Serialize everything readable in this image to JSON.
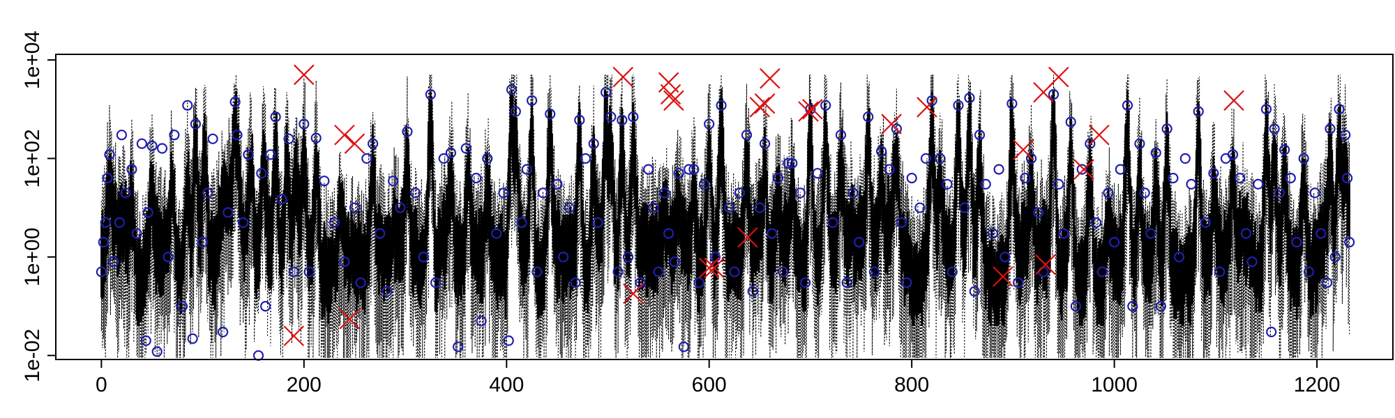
{
  "chart_data": {
    "type": "line",
    "title": "",
    "xlabel": "",
    "ylabel": "",
    "x_scale": "linear",
    "y_scale": "log10",
    "xlim": [
      -45,
      1275
    ],
    "ylim": [
      0.0083,
      13000
    ],
    "x_ticks": [
      0,
      200,
      400,
      600,
      800,
      1000,
      1200
    ],
    "x_tick_labels": [
      "0",
      "200",
      "400",
      "600",
      "800",
      "1000",
      "1200"
    ],
    "y_ticks": [
      0.01,
      1,
      100,
      10000
    ],
    "y_tick_labels": [
      "1e-02",
      "1e+00",
      "1e+02",
      "1e+04"
    ],
    "grid": false,
    "legend": "none",
    "n_points": 1232,
    "colors": {
      "series": "#000000",
      "circles": "#1f1fb0",
      "crosses": "#dd1111",
      "axes": "#000000"
    },
    "series": [
      {
        "style": "solid thick",
        "description_level": "central values, roughly 0.05 to 1000"
      },
      {
        "style": "dotted",
        "description_level": "spread, roughly 0.005 to 5000"
      }
    ],
    "peak_points": [
      [
        8,
        120
      ],
      [
        22,
        30
      ],
      [
        30,
        60
      ],
      [
        50,
        70
      ],
      [
        70,
        90
      ],
      [
        85,
        115
      ],
      [
        93,
        500
      ],
      [
        102,
        600
      ],
      [
        132,
        1400
      ],
      [
        134,
        300
      ],
      [
        148,
        200
      ],
      [
        160,
        300
      ],
      [
        172,
        700
      ],
      [
        183,
        250
      ],
      [
        192,
        280
      ],
      [
        200,
        400
      ],
      [
        212,
        260
      ],
      [
        236,
        30
      ],
      [
        268,
        200
      ],
      [
        302,
        350
      ],
      [
        325,
        2000
      ],
      [
        345,
        130
      ],
      [
        362,
        160
      ],
      [
        381,
        100
      ],
      [
        405,
        2500
      ],
      [
        409,
        900
      ],
      [
        425,
        1500
      ],
      [
        443,
        800
      ],
      [
        472,
        600
      ],
      [
        486,
        200
      ],
      [
        498,
        2200
      ],
      [
        503,
        700
      ],
      [
        514,
        600
      ],
      [
        525,
        700
      ],
      [
        556,
        20
      ],
      [
        570,
        50
      ],
      [
        585,
        60
      ],
      [
        600,
        500
      ],
      [
        612,
        1200
      ],
      [
        637,
        300
      ],
      [
        655,
        200
      ],
      [
        668,
        40
      ],
      [
        682,
        80
      ],
      [
        700,
        1000
      ],
      [
        715,
        1200
      ],
      [
        730,
        300
      ],
      [
        757,
        700
      ],
      [
        770,
        140
      ],
      [
        785,
        400
      ],
      [
        820,
        1500
      ],
      [
        828,
        100
      ],
      [
        846,
        1200
      ],
      [
        857,
        1700
      ],
      [
        867,
        300
      ],
      [
        899,
        1300
      ],
      [
        918,
        100
      ],
      [
        940,
        2000
      ],
      [
        957,
        550
      ],
      [
        976,
        200
      ],
      [
        994,
        20
      ],
      [
        1013,
        1200
      ],
      [
        1025,
        200
      ],
      [
        1041,
        130
      ],
      [
        1052,
        400
      ],
      [
        1083,
        900
      ],
      [
        1098,
        50
      ],
      [
        1117,
        120
      ],
      [
        1150,
        1000
      ],
      [
        1158,
        400
      ],
      [
        1168,
        150
      ],
      [
        1187,
        100
      ],
      [
        1213,
        400
      ],
      [
        1222,
        1000
      ],
      [
        1228,
        300
      ]
    ],
    "circled_points": [
      [
        0,
        0.5
      ],
      [
        2,
        2
      ],
      [
        4,
        5
      ],
      [
        6,
        40
      ],
      [
        8,
        120
      ],
      [
        12,
        0.8
      ],
      [
        18,
        5
      ],
      [
        20,
        300
      ],
      [
        24,
        20
      ],
      [
        30,
        60
      ],
      [
        35,
        3
      ],
      [
        40,
        200
      ],
      [
        44,
        0.02
      ],
      [
        46,
        8
      ],
      [
        50,
        180
      ],
      [
        55,
        0.012
      ],
      [
        60,
        160
      ],
      [
        66,
        1
      ],
      [
        72,
        300
      ],
      [
        80,
        0.1
      ],
      [
        85,
        1200
      ],
      [
        90,
        0.022
      ],
      [
        93,
        500
      ],
      [
        100,
        2
      ],
      [
        105,
        20
      ],
      [
        110,
        250
      ],
      [
        120,
        0.03
      ],
      [
        125,
        8
      ],
      [
        132,
        1400
      ],
      [
        134,
        300
      ],
      [
        140,
        5
      ],
      [
        145,
        120
      ],
      [
        155,
        0.01
      ],
      [
        158,
        50
      ],
      [
        162,
        0.1
      ],
      [
        167,
        120
      ],
      [
        172,
        700
      ],
      [
        178,
        15
      ],
      [
        185,
        250
      ],
      [
        190,
        0.5
      ],
      [
        200,
        500
      ],
      [
        205,
        0.5
      ],
      [
        212,
        260
      ],
      [
        220,
        35
      ],
      [
        230,
        5
      ],
      [
        240,
        0.8
      ],
      [
        250,
        10
      ],
      [
        256,
        0.3
      ],
      [
        262,
        100
      ],
      [
        268,
        200
      ],
      [
        275,
        3
      ],
      [
        282,
        0.2
      ],
      [
        288,
        35
      ],
      [
        295,
        10
      ],
      [
        302,
        350
      ],
      [
        310,
        20
      ],
      [
        318,
        1
      ],
      [
        325,
        2000
      ],
      [
        330,
        0.3
      ],
      [
        338,
        100
      ],
      [
        345,
        130
      ],
      [
        352,
        0.015
      ],
      [
        360,
        160
      ],
      [
        370,
        40
      ],
      [
        375,
        0.05
      ],
      [
        381,
        100
      ],
      [
        390,
        3
      ],
      [
        397,
        20
      ],
      [
        402,
        0.02
      ],
      [
        405,
        2500
      ],
      [
        409,
        900
      ],
      [
        415,
        5
      ],
      [
        420,
        60
      ],
      [
        425,
        1500
      ],
      [
        430,
        0.5
      ],
      [
        436,
        20
      ],
      [
        443,
        800
      ],
      [
        450,
        30
      ],
      [
        456,
        1
      ],
      [
        462,
        10
      ],
      [
        468,
        0.3
      ],
      [
        472,
        600
      ],
      [
        478,
        100
      ],
      [
        486,
        200
      ],
      [
        490,
        5
      ],
      [
        498,
        2200
      ],
      [
        503,
        700
      ],
      [
        510,
        0.5
      ],
      [
        514,
        600
      ],
      [
        520,
        1
      ],
      [
        525,
        700
      ],
      [
        532,
        0.3
      ],
      [
        540,
        60
      ],
      [
        545,
        10
      ],
      [
        550,
        0.5
      ],
      [
        556,
        20
      ],
      [
        560,
        3
      ],
      [
        566,
        0.8
      ],
      [
        570,
        50
      ],
      [
        575,
        0.015
      ],
      [
        580,
        60
      ],
      [
        585,
        60
      ],
      [
        590,
        0.3
      ],
      [
        595,
        30
      ],
      [
        600,
        500
      ],
      [
        606,
        1
      ],
      [
        612,
        1200
      ],
      [
        620,
        10
      ],
      [
        625,
        0.5
      ],
      [
        630,
        20
      ],
      [
        637,
        300
      ],
      [
        643,
        0.2
      ],
      [
        650,
        10
      ],
      [
        655,
        200
      ],
      [
        662,
        3
      ],
      [
        668,
        40
      ],
      [
        673,
        0.5
      ],
      [
        678,
        80
      ],
      [
        682,
        80
      ],
      [
        690,
        20
      ],
      [
        695,
        0.3
      ],
      [
        700,
        1000
      ],
      [
        707,
        50
      ],
      [
        715,
        1200
      ],
      [
        722,
        5
      ],
      [
        730,
        300
      ],
      [
        736,
        0.3
      ],
      [
        742,
        20
      ],
      [
        748,
        2
      ],
      [
        757,
        700
      ],
      [
        763,
        0.5
      ],
      [
        770,
        140
      ],
      [
        778,
        60
      ],
      [
        785,
        400
      ],
      [
        790,
        5
      ],
      [
        795,
        0.3
      ],
      [
        800,
        40
      ],
      [
        808,
        10
      ],
      [
        814,
        100
      ],
      [
        820,
        1500
      ],
      [
        828,
        100
      ],
      [
        835,
        30
      ],
      [
        840,
        0.5
      ],
      [
        846,
        1200
      ],
      [
        852,
        10
      ],
      [
        857,
        1700
      ],
      [
        862,
        0.2
      ],
      [
        867,
        300
      ],
      [
        873,
        30
      ],
      [
        880,
        3
      ],
      [
        886,
        60
      ],
      [
        892,
        1
      ],
      [
        899,
        1300
      ],
      [
        905,
        0.3
      ],
      [
        912,
        40
      ],
      [
        918,
        100
      ],
      [
        925,
        8
      ],
      [
        930,
        0.5
      ],
      [
        940,
        2000
      ],
      [
        945,
        30
      ],
      [
        950,
        3
      ],
      [
        957,
        550
      ],
      [
        962,
        0.1
      ],
      [
        968,
        60
      ],
      [
        976,
        200
      ],
      [
        982,
        5
      ],
      [
        988,
        0.5
      ],
      [
        994,
        20
      ],
      [
        1000,
        2
      ],
      [
        1006,
        60
      ],
      [
        1013,
        1200
      ],
      [
        1018,
        0.1
      ],
      [
        1025,
        200
      ],
      [
        1030,
        20
      ],
      [
        1036,
        3
      ],
      [
        1041,
        130
      ],
      [
        1046,
        0.1
      ],
      [
        1052,
        400
      ],
      [
        1058,
        40
      ],
      [
        1064,
        1
      ],
      [
        1070,
        100
      ],
      [
        1076,
        30
      ],
      [
        1083,
        900
      ],
      [
        1090,
        5
      ],
      [
        1098,
        50
      ],
      [
        1104,
        0.5
      ],
      [
        1110,
        100
      ],
      [
        1117,
        120
      ],
      [
        1124,
        40
      ],
      [
        1130,
        3
      ],
      [
        1136,
        0.8
      ],
      [
        1142,
        30
      ],
      [
        1150,
        1000
      ],
      [
        1155,
        0.03
      ],
      [
        1158,
        400
      ],
      [
        1163,
        20
      ],
      [
        1168,
        150
      ],
      [
        1174,
        40
      ],
      [
        1180,
        2
      ],
      [
        1187,
        100
      ],
      [
        1192,
        0.5
      ],
      [
        1198,
        20
      ],
      [
        1204,
        3
      ],
      [
        1210,
        0.3
      ],
      [
        1213,
        400
      ],
      [
        1218,
        1
      ],
      [
        1222,
        1000
      ],
      [
        1228,
        300
      ],
      [
        1230,
        40
      ],
      [
        1232,
        2
      ]
    ],
    "crossed_points": [
      [
        190,
        0.025
      ],
      [
        200,
        5000
      ],
      [
        240,
        300
      ],
      [
        245,
        0.055
      ],
      [
        250,
        200
      ],
      [
        525,
        0.18
      ],
      [
        515,
        4500
      ],
      [
        560,
        3500
      ],
      [
        562,
        2000
      ],
      [
        565,
        1500
      ],
      [
        600,
        0.6
      ],
      [
        605,
        0.6
      ],
      [
        638,
        2.5
      ],
      [
        650,
        1100
      ],
      [
        655,
        1300
      ],
      [
        660,
        4200
      ],
      [
        698,
        900
      ],
      [
        702,
        1000
      ],
      [
        780,
        500
      ],
      [
        815,
        1100
      ],
      [
        890,
        0.4
      ],
      [
        910,
        150
      ],
      [
        930,
        2200
      ],
      [
        932,
        0.7
      ],
      [
        945,
        4500
      ],
      [
        970,
        60
      ],
      [
        985,
        300
      ],
      [
        1118,
        1500
      ]
    ]
  }
}
